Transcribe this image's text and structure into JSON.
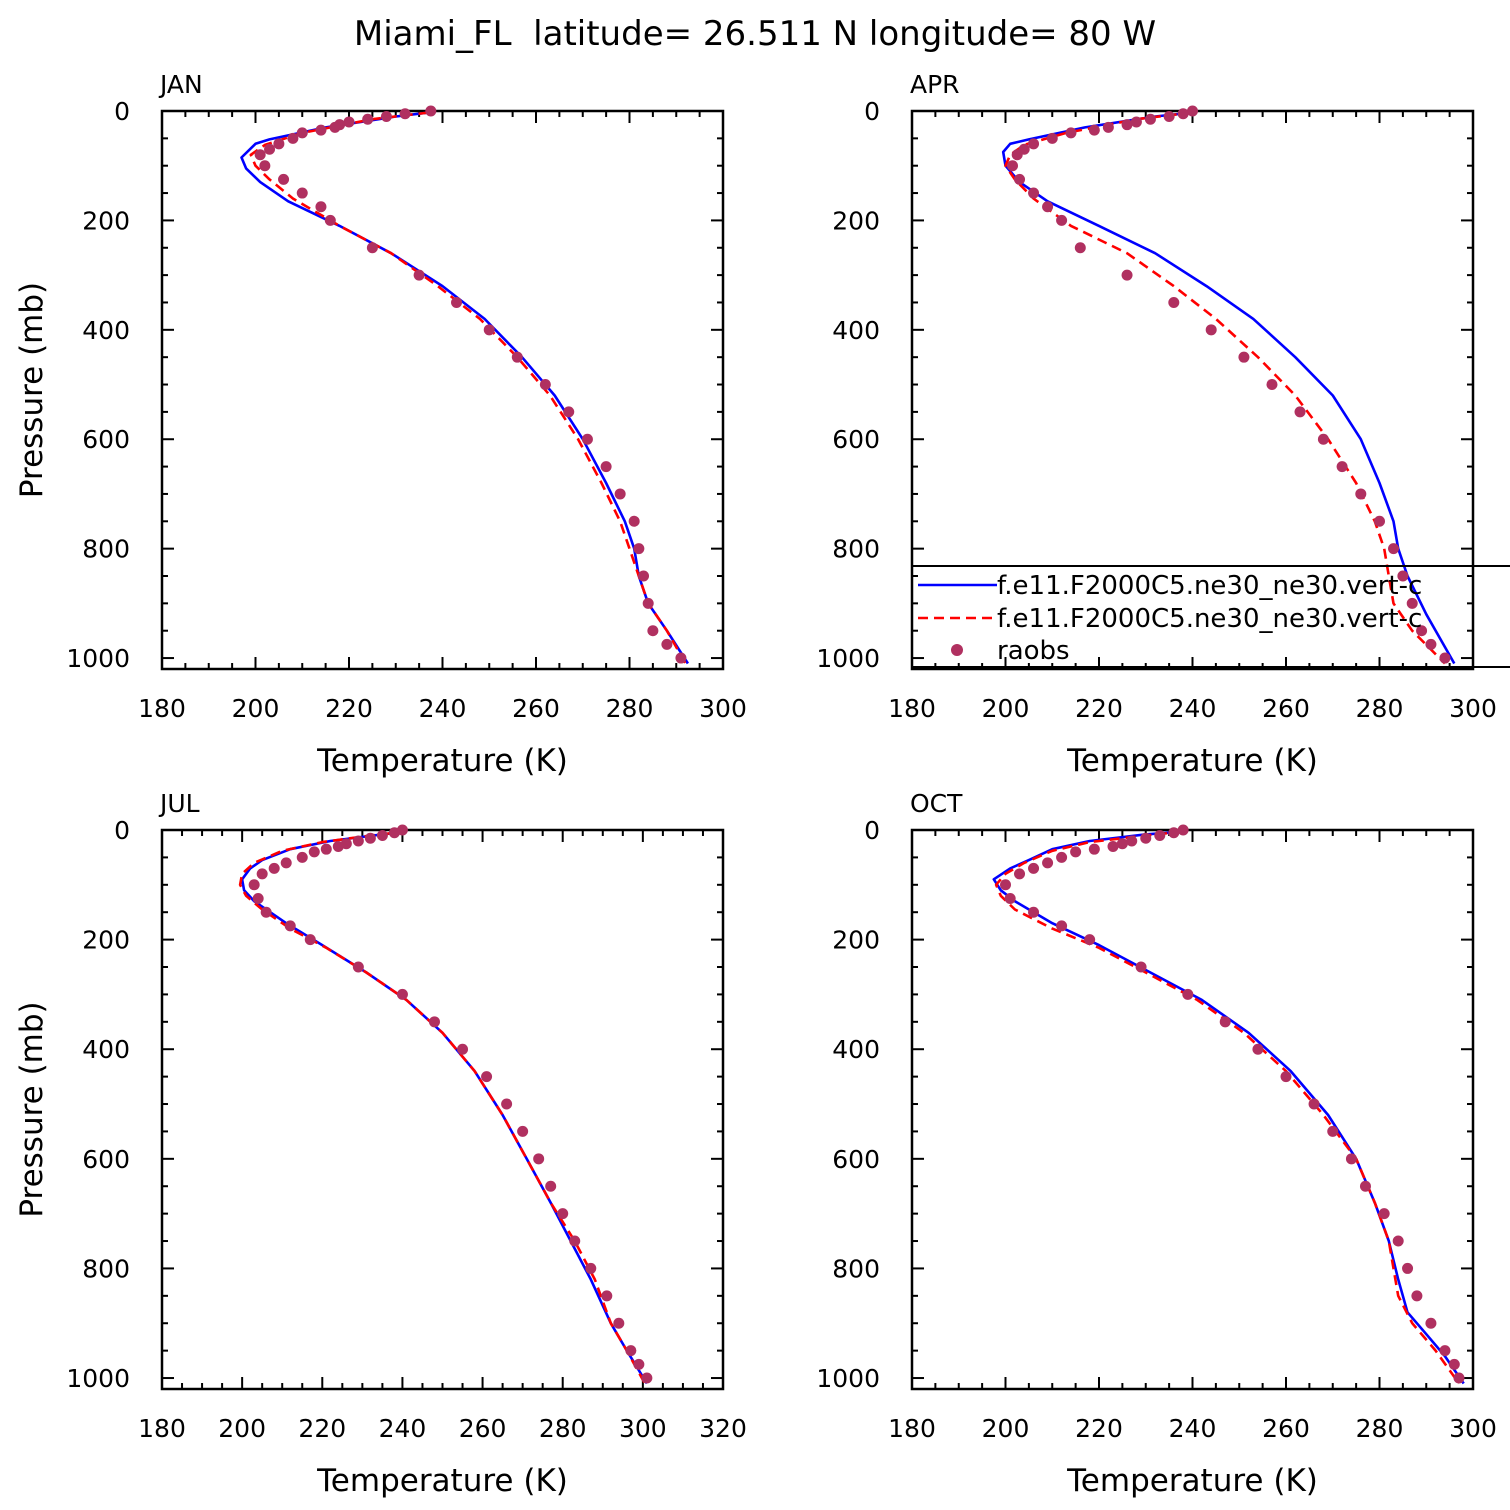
{
  "figure_title": "Miami_FL  latitude= 26.511 N longitude= 80 W",
  "colors": {
    "model_1": "#0000ff",
    "model_2": "#ff0000",
    "raobs": "#b03060",
    "axis": "#000000"
  },
  "legend": {
    "placement": "lower-right of APR panel (extends beyond panel)",
    "entries": [
      {
        "label": "f.e11.F2000C5.ne30_ne30.vert-c",
        "style": "solid-line",
        "color": "#0000ff"
      },
      {
        "label": "f.e11.F2000C5.ne30_ne30.vert-c",
        "style": "dashed-line",
        "color": "#ff0000"
      },
      {
        "label": "raobs",
        "style": "dot",
        "color": "#b03060"
      }
    ]
  },
  "chart_data": [
    {
      "type": "line",
      "title": "JAN",
      "xlabel": "Temperature (K)",
      "ylabel": "Pressure (mb)",
      "xlim": [
        180,
        300
      ],
      "ylim": [
        1020,
        0
      ],
      "xticks": [
        180,
        200,
        220,
        240,
        260,
        280,
        300
      ],
      "yticks": [
        0,
        200,
        400,
        600,
        800,
        1000
      ],
      "series": [
        {
          "style": "solid",
          "color": "#0000ff",
          "x": [
            237,
            230,
            215,
            203,
            200,
            197,
            198,
            201,
            207,
            218,
            229,
            240,
            249,
            257,
            264,
            270,
            275,
            279,
            281,
            282,
            284,
            288,
            292.5
          ],
          "y": [
            3,
            10,
            30,
            52,
            60,
            85,
            105,
            130,
            165,
            210,
            260,
            320,
            380,
            450,
            520,
            600,
            680,
            750,
            800,
            850,
            900,
            950,
            1010
          ]
        },
        {
          "style": "dashed",
          "color": "#ff0000",
          "x": [
            237,
            225,
            210,
            202,
            199,
            200,
            203,
            208,
            218,
            229,
            239,
            248,
            256,
            263,
            269,
            274,
            278,
            280,
            282,
            284,
            288,
            292
          ],
          "y": [
            3,
            15,
            40,
            62,
            80,
            100,
            125,
            160,
            210,
            260,
            320,
            380,
            450,
            520,
            600,
            680,
            750,
            800,
            850,
            900,
            950,
            1010
          ]
        },
        {
          "style": "points",
          "color": "#b03060",
          "x": [
            237.5,
            232,
            228,
            224,
            220,
            218,
            217,
            214,
            210,
            208,
            205,
            203,
            201,
            202,
            206,
            210,
            214,
            216,
            225,
            235,
            243,
            250,
            256,
            262,
            267,
            271,
            275,
            278,
            281,
            282,
            283,
            284,
            285,
            288,
            291
          ],
          "y": [
            0,
            5,
            10,
            15,
            20,
            25,
            30,
            35,
            40,
            50,
            60,
            70,
            80,
            100,
            125,
            150,
            175,
            200,
            250,
            300,
            350,
            400,
            450,
            500,
            550,
            600,
            650,
            700,
            750,
            800,
            850,
            900,
            950,
            975,
            1000
          ]
        }
      ]
    },
    {
      "type": "line",
      "title": "APR",
      "xlabel": "Temperature (K)",
      "ylabel": "",
      "xlim": [
        180,
        300
      ],
      "ylim": [
        1020,
        0
      ],
      "xticks": [
        180,
        200,
        220,
        240,
        260,
        280,
        300
      ],
      "yticks": [
        0,
        200,
        400,
        600,
        800,
        1000
      ],
      "series": [
        {
          "style": "solid",
          "color": "#0000ff",
          "x": [
            240,
            232,
            217,
            205,
            201,
            199.5,
            200,
            203,
            209,
            220,
            232,
            243,
            253,
            262,
            270,
            276,
            280,
            283,
            284,
            286,
            290,
            296
          ],
          "y": [
            3,
            10,
            30,
            52,
            60,
            75,
            100,
            130,
            165,
            210,
            260,
            320,
            380,
            450,
            520,
            600,
            680,
            750,
            800,
            850,
            920,
            1010
          ]
        },
        {
          "style": "dashed",
          "color": "#ff0000",
          "x": [
            240,
            228,
            213,
            204,
            201,
            200,
            202,
            206,
            214,
            226,
            236,
            245,
            254,
            262,
            269,
            275,
            279,
            281,
            282,
            283,
            287,
            294
          ],
          "y": [
            3,
            15,
            40,
            62,
            80,
            100,
            125,
            160,
            210,
            260,
            320,
            380,
            450,
            520,
            600,
            680,
            750,
            800,
            850,
            900,
            950,
            1010
          ]
        },
        {
          "style": "points",
          "color": "#b03060",
          "x": [
            240,
            238,
            235,
            231,
            228,
            226,
            222,
            219,
            214,
            210,
            206,
            204,
            202.5,
            201.5,
            203,
            206,
            209,
            212,
            216,
            226,
            236,
            244,
            251,
            257,
            263,
            268,
            272,
            276,
            280,
            283,
            285,
            287,
            289,
            291,
            294
          ],
          "y": [
            0,
            5,
            10,
            15,
            20,
            25,
            30,
            35,
            40,
            50,
            60,
            70,
            80,
            100,
            125,
            150,
            175,
            200,
            250,
            300,
            350,
            400,
            450,
            500,
            550,
            600,
            650,
            700,
            750,
            800,
            850,
            900,
            950,
            975,
            1000
          ]
        }
      ]
    },
    {
      "type": "line",
      "title": "JUL",
      "xlabel": "Temperature (K)",
      "ylabel": "Pressure (mb)",
      "xlim": [
        180,
        320
      ],
      "ylim": [
        1020,
        0
      ],
      "xticks": [
        180,
        200,
        220,
        240,
        260,
        280,
        300,
        320
      ],
      "yticks": [
        0,
        200,
        400,
        600,
        800,
        1000
      ],
      "series": [
        {
          "style": "solid",
          "color": "#0000ff",
          "x": [
            241,
            235,
            222,
            212,
            205,
            202,
            200,
            200.5,
            203,
            211,
            220,
            231,
            241,
            250,
            258,
            265,
            271,
            277,
            282,
            287,
            292,
            296,
            301
          ],
          "y": [
            3,
            8,
            20,
            35,
            55,
            70,
            90,
            110,
            130,
            170,
            210,
            260,
            310,
            370,
            440,
            520,
            600,
            680,
            750,
            820,
            900,
            950,
            1010
          ]
        },
        {
          "style": "dashed",
          "color": "#ff0000",
          "x": [
            241,
            232,
            220,
            210,
            203,
            200,
            199.5,
            201,
            205,
            212,
            221,
            231,
            241,
            250,
            258,
            265,
            271,
            277,
            283,
            288,
            292,
            296,
            300.5
          ],
          "y": [
            3,
            10,
            22,
            38,
            60,
            80,
            100,
            120,
            145,
            180,
            215,
            260,
            310,
            370,
            440,
            520,
            600,
            680,
            750,
            820,
            900,
            950,
            1010
          ]
        },
        {
          "style": "points",
          "color": "#b03060",
          "x": [
            240,
            238,
            235,
            232,
            229,
            226,
            224,
            221,
            218,
            215,
            211,
            208,
            205,
            203,
            204,
            206,
            212,
            217,
            229,
            240,
            248,
            255,
            261,
            266,
            270,
            274,
            277,
            280,
            283,
            287,
            291,
            294,
            297,
            299,
            301
          ],
          "y": [
            0,
            5,
            10,
            15,
            20,
            25,
            30,
            35,
            40,
            50,
            60,
            70,
            80,
            100,
            125,
            150,
            175,
            200,
            250,
            300,
            350,
            400,
            450,
            500,
            550,
            600,
            650,
            700,
            750,
            800,
            850,
            900,
            950,
            975,
            1000
          ]
        }
      ]
    },
    {
      "type": "line",
      "title": "OCT",
      "xlabel": "Temperature (K)",
      "ylabel": "",
      "xlim": [
        180,
        300
      ],
      "ylim": [
        1020,
        0
      ],
      "xticks": [
        180,
        200,
        220,
        240,
        260,
        280,
        300
      ],
      "yticks": [
        0,
        200,
        400,
        600,
        800,
        1000
      ],
      "series": [
        {
          "style": "solid",
          "color": "#0000ff",
          "x": [
            238,
            230,
            218,
            210,
            205,
            201,
            197.5,
            199,
            202,
            210,
            220,
            231,
            242,
            252,
            261,
            269,
            275,
            279,
            282,
            284,
            286,
            290,
            294,
            298
          ],
          "y": [
            3,
            8,
            20,
            35,
            55,
            70,
            90,
            110,
            130,
            170,
            210,
            260,
            310,
            370,
            440,
            520,
            600,
            680,
            750,
            820,
            880,
            920,
            960,
            1010
          ]
        },
        {
          "style": "dashed",
          "color": "#ff0000",
          "x": [
            238,
            230,
            218,
            210,
            204,
            200,
            198,
            199,
            202,
            210,
            220,
            230,
            241,
            251,
            260,
            268,
            275,
            279,
            282,
            284,
            287,
            292,
            297
          ],
          "y": [
            3,
            10,
            22,
            38,
            60,
            80,
            100,
            120,
            145,
            180,
            215,
            260,
            310,
            370,
            440,
            520,
            600,
            680,
            750,
            850,
            900,
            950,
            1010
          ]
        },
        {
          "style": "points",
          "color": "#b03060",
          "x": [
            238,
            236,
            233,
            230,
            227,
            225,
            223,
            219,
            215,
            212,
            209,
            206,
            203,
            200,
            201,
            206,
            212,
            218,
            229,
            239,
            247,
            254,
            260,
            266,
            270,
            274,
            277,
            281,
            284,
            286,
            288,
            291,
            294,
            296,
            297
          ],
          "y": [
            0,
            5,
            10,
            15,
            20,
            25,
            30,
            35,
            40,
            50,
            60,
            70,
            80,
            100,
            125,
            150,
            175,
            200,
            250,
            300,
            350,
            400,
            450,
            500,
            550,
            600,
            650,
            700,
            750,
            800,
            850,
            900,
            950,
            975,
            1000
          ]
        }
      ]
    }
  ]
}
